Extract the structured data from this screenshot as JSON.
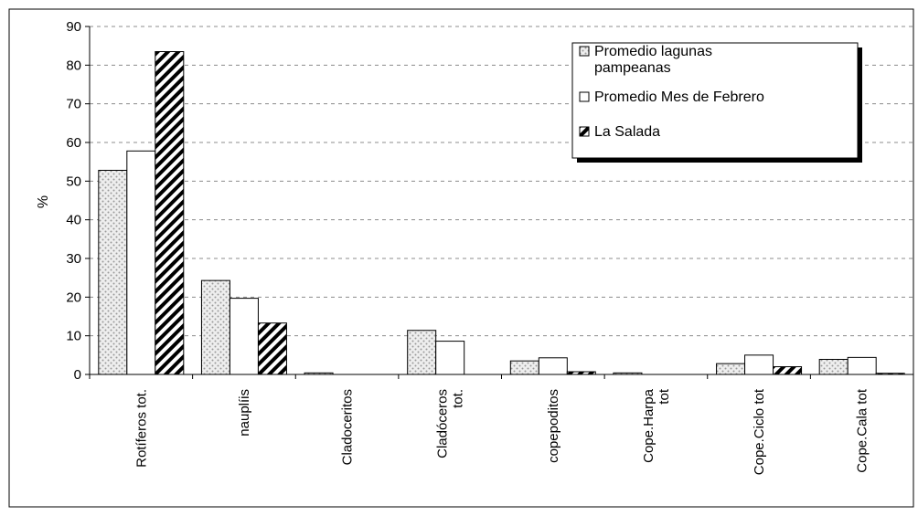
{
  "chart_data": {
    "type": "bar",
    "title": "",
    "xlabel": "",
    "ylabel": "%",
    "ylim": [
      0,
      90
    ],
    "yticks": [
      0,
      10,
      20,
      30,
      40,
      50,
      60,
      70,
      80,
      90
    ],
    "grid": "horizontal-dashed",
    "legend_position": "top-right",
    "categories": [
      "Rotíferos tot.",
      "nauplíis",
      "Cladoceritos",
      "Cladóceros tot.",
      "copepoditos",
      "Cope.Harpa tot",
      "Cope.Ciclo tot",
      "Cope.Cala tot"
    ],
    "category_lines": [
      [
        "Rotíferos tot."
      ],
      [
        "nauplíis"
      ],
      [
        "Cladoceritos"
      ],
      [
        "Cladóceros",
        "tot."
      ],
      [
        "copepoditos"
      ],
      [
        "Cope.Harpa",
        "tot"
      ],
      [
        "Cope.Ciclo tot"
      ],
      [
        "Cope.Cala tot"
      ]
    ],
    "series": [
      {
        "name": "Promedio lagunas pampeanas",
        "legend_lines": [
          "Promedio lagunas",
          "pampeanas"
        ],
        "pattern": "dotted",
        "values": [
          52.8,
          24.3,
          0.4,
          11.4,
          3.5,
          0.4,
          2.8,
          3.9
        ]
      },
      {
        "name": "Promedio Mes de Febrero",
        "legend_lines": [
          "Promedio Mes de Febrero"
        ],
        "pattern": "white",
        "values": [
          57.8,
          19.7,
          0.0,
          8.6,
          4.3,
          0.0,
          5.0,
          4.4
        ]
      },
      {
        "name": "La Salada",
        "legend_lines": [
          "La Salada"
        ],
        "pattern": "hatched",
        "values": [
          83.5,
          13.3,
          0.0,
          0.0,
          0.7,
          0.0,
          2.0,
          0.3
        ]
      }
    ]
  }
}
